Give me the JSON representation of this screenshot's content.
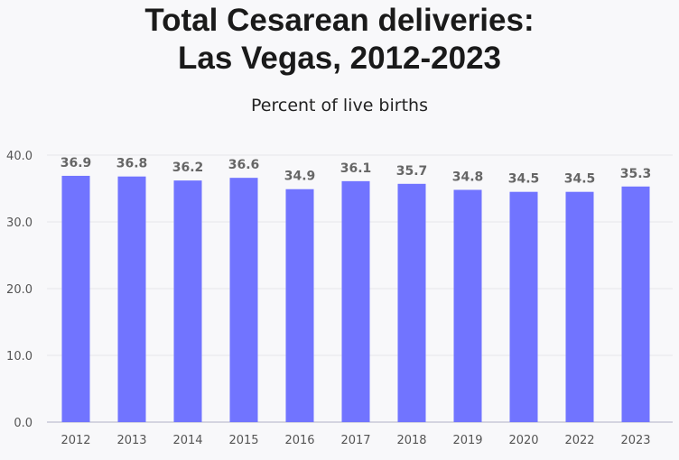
{
  "chart_data": {
    "type": "bar",
    "title_lines": [
      "Total Cesarean deliveries:",
      "Las Vegas, 2012-2023"
    ],
    "subtitle": "Percent of live births",
    "categories": [
      "2012",
      "2013",
      "2014",
      "2015",
      "2016",
      "2017",
      "2018",
      "2019",
      "2020",
      "2022",
      "2023"
    ],
    "values": [
      36.9,
      36.8,
      36.2,
      36.6,
      34.9,
      36.1,
      35.7,
      34.8,
      34.5,
      34.5,
      35.3
    ],
    "data_labels": [
      "36.9",
      "36.8",
      "36.2",
      "36.6",
      "34.9",
      "36.1",
      "35.7",
      "34.8",
      "34.5",
      "34.5",
      "35.3"
    ],
    "yticks": [
      "0.0",
      "10.0",
      "20.0",
      "30.0",
      "40.0"
    ],
    "ylim": [
      0,
      40
    ],
    "grid": true,
    "colors": {
      "bar": "#7174ff",
      "label": "#666666",
      "grid": "#e6e6ea"
    }
  }
}
